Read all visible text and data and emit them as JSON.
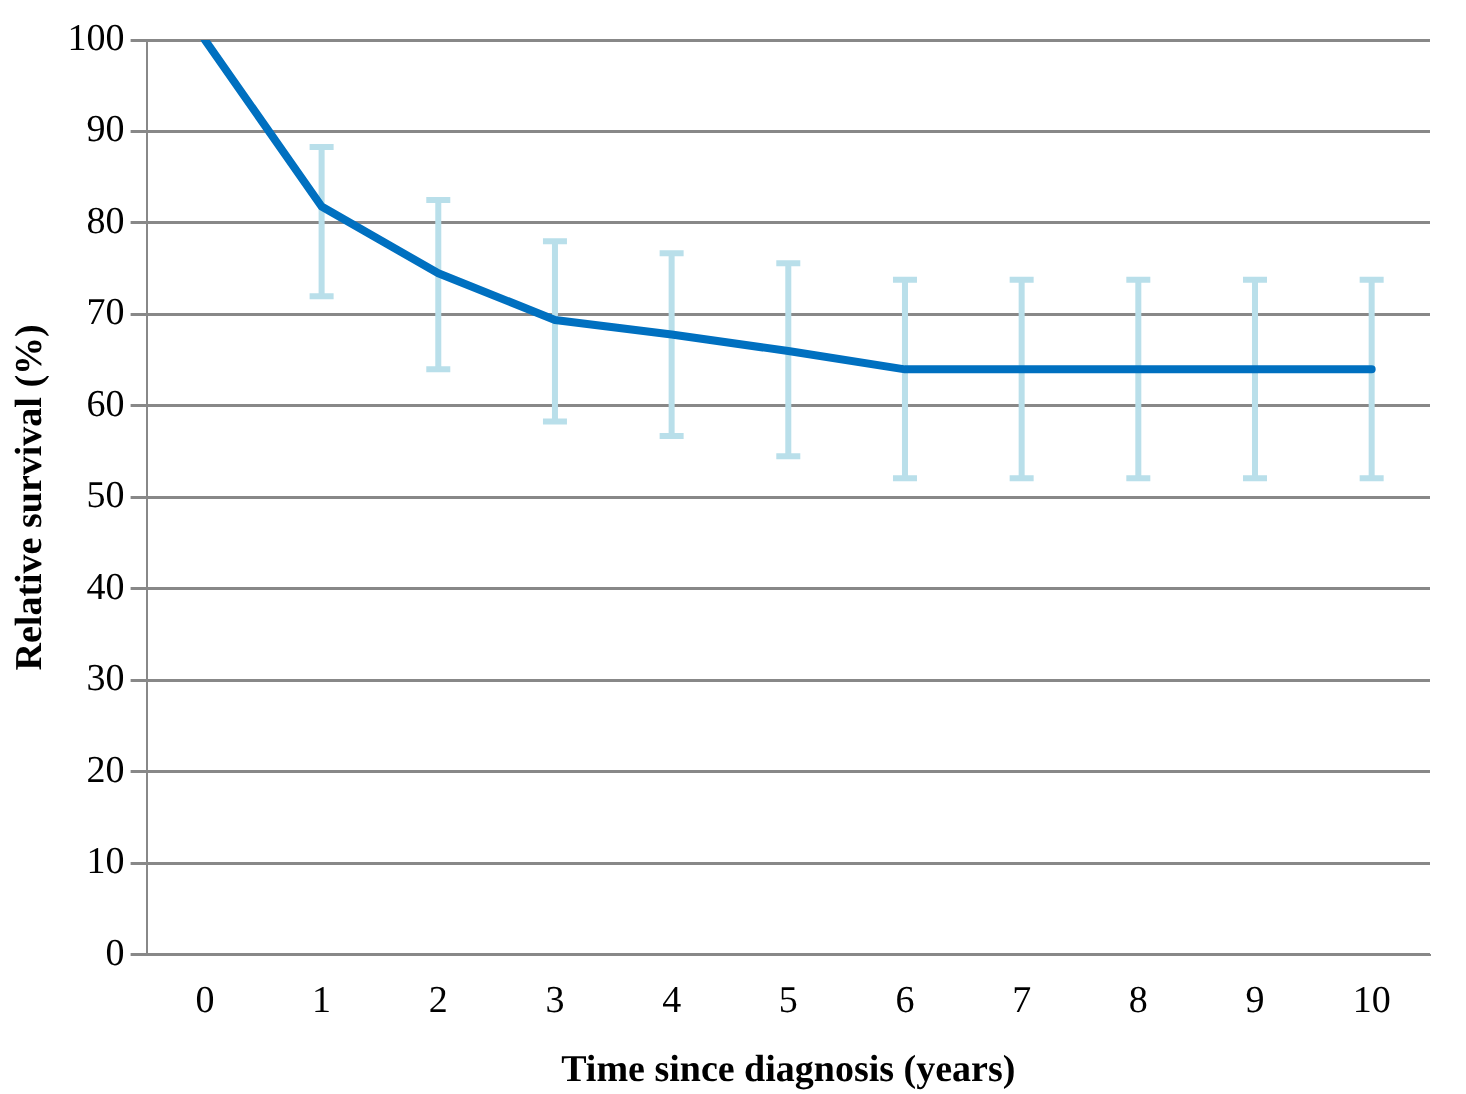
{
  "chart_data": {
    "type": "line",
    "xlabel": "Time since diagnosis (years)",
    "ylabel": "Relative survival (%)",
    "categories": [
      "0",
      "1",
      "2",
      "3",
      "4",
      "5",
      "6",
      "7",
      "8",
      "9",
      "10"
    ],
    "series": [
      {
        "color": "#0070c0",
        "values": [
          100,
          81.8,
          74.5,
          69.4,
          67.8,
          66,
          64,
          64,
          64,
          64,
          64
        ],
        "errors": [
          null,
          [
            72.0,
            88.3
          ],
          [
            64.0,
            82.5
          ],
          [
            58.3,
            78.0
          ],
          [
            56.7,
            76.7
          ],
          [
            54.5,
            75.6
          ],
          [
            52.1,
            73.8
          ],
          [
            52.1,
            73.8
          ],
          [
            52.1,
            73.8
          ],
          [
            52.1,
            73.8
          ],
          [
            52.1,
            73.8
          ]
        ]
      }
    ],
    "ylim": [
      0,
      100
    ],
    "yticks": [
      0,
      10,
      20,
      30,
      40,
      50,
      60,
      70,
      80,
      90,
      100
    ],
    "grid": "y",
    "legend": false,
    "marker": "none",
    "line_style": "solid"
  }
}
